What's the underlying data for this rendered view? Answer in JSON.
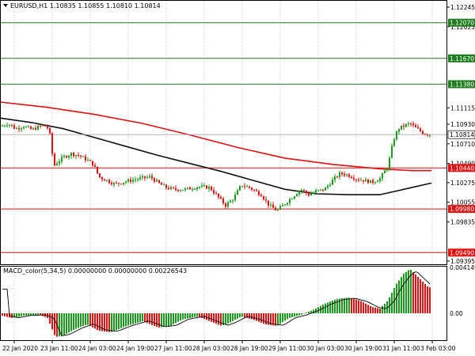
{
  "header": {
    "symbol_line": "EURUSD,H1  1.10835 1.10855 1.10810 1.10814"
  },
  "indicator": {
    "label": "MACD_color(5,34,5) 0.00000000 0.00000000 0.00226543",
    "scale_top": "0.0041497",
    "scale_zero": "0.00"
  },
  "price_axis": {
    "ticks": [
      "1.12245",
      "1.12025",
      "1.11115",
      "1.10930",
      "1.10710",
      "1.10490",
      "1.10275",
      "1.10055",
      "1.09835",
      "1.09395"
    ],
    "tick_values": [
      1.12245,
      1.12025,
      1.11115,
      1.1093,
      1.1071,
      1.1049,
      1.10275,
      1.10055,
      1.09835,
      1.09395
    ],
    "current_price": "1.10814"
  },
  "levels": [
    {
      "label": "1.12070",
      "value": 1.1207,
      "color": "#1e7d1e"
    },
    {
      "label": "1.11670",
      "value": 1.1167,
      "color": "#1e7d1e"
    },
    {
      "label": "1.11380",
      "value": 1.1138,
      "color": "#1e7d1e"
    },
    {
      "label": "1.10440",
      "value": 1.1044,
      "color": "#e01010"
    },
    {
      "label": "1.09980",
      "value": 1.0998,
      "color": "#e01010"
    },
    {
      "label": "1.09490",
      "value": 1.0949,
      "color": "#e01010"
    }
  ],
  "time_axis": [
    "22 Jan 2020",
    "23 Jan 11:00",
    "24 Jan 03:00",
    "24 Jan 19:00",
    "27 Jan 11:00",
    "28 Jan 03:00",
    "28 Jan 19:00",
    "29 Jan 11:00",
    "30 Jan 03:00",
    "30 Jan 19:00",
    "31 Jan 11:00",
    "3 Feb 03:00"
  ],
  "colors": {
    "bull": "#1a9a1a",
    "bear": "#e01010",
    "ma_slow": "#e01010",
    "ma_fast": "#111111",
    "grid": "#c8c8c8"
  }
}
